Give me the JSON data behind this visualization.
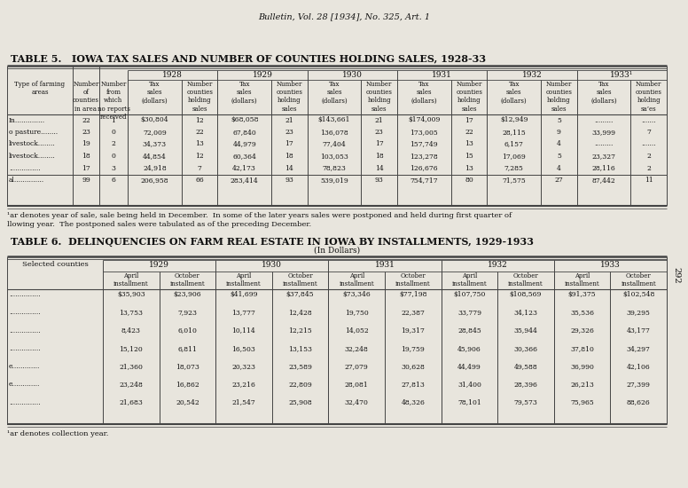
{
  "header_top": "Bulletin, Vol. 28 [1934], No. 325, Art. 1",
  "t5_title": "TABLE 5.   IOWA TAX SALES AND NUMBER OF COUNTIES HOLDING SALES, 1928-33",
  "years": [
    "1928",
    "1929",
    "1930",
    "1931",
    "1932",
    "1933¹"
  ],
  "t5_rows": [
    [
      "In..............",
      "22",
      "1",
      "$30,804",
      "12",
      "$68,058",
      "21",
      "$143,661",
      "21",
      "$174,009",
      "17",
      "$12,949",
      "5",
      ".........",
      "......."
    ],
    [
      "o pasture........",
      "23",
      "0",
      "72,009",
      "22",
      "67,840",
      "23",
      "136,078",
      "23",
      "173,005",
      "22",
      "28,115",
      "9",
      "33,999",
      "7"
    ],
    [
      "livestock........",
      "19",
      "2",
      "34,373",
      "13",
      "44,979",
      "17",
      "77,404",
      "17",
      "157,749",
      "13",
      "6,157",
      "4",
      ".........",
      "......."
    ],
    [
      "livestock........",
      "18",
      "0",
      "44,854",
      "12",
      "60,364",
      "18",
      "103,053",
      "18",
      "123,278",
      "15",
      "17,069",
      "5",
      "23,327",
      "2"
    ],
    [
      "...............",
      "17",
      "3",
      "24,918",
      "7",
      "42,173",
      "14",
      "78,823",
      "14",
      "126,676",
      "13",
      "7,285",
      "4",
      "28,116",
      "2"
    ],
    [
      "al..............",
      "99",
      "6",
      "206,958",
      "66",
      "283,414",
      "93",
      "539,019",
      "93",
      "754,717",
      "80",
      "71,575",
      "27",
      "87,442",
      "11"
    ]
  ],
  "t5_fn1": "¹ar denotes year of sale, sale being held in December.  In some of the later years sales were postponed and held during first quarter of",
  "t5_fn2": "llowing year.  The postponed sales were tabulated as of the preceding December.",
  "t6_title": "TABLE 6.  DELINQUENCIES ON FARM REAL ESTATE IN IOWA BY INSTALLMENTS, 1929-1933",
  "t6_subtitle": "(In Dollars)",
  "t6_years": [
    "1929",
    "1930",
    "1931",
    "1932",
    "1933"
  ],
  "t6_rows": [
    [
      "...............",
      "$35,903",
      "$23,906",
      "$41,699",
      "$37,845",
      "$73,346",
      "$77,198",
      "$107,750",
      "$108,569",
      "$91,375",
      "$102,548"
    ],
    [
      "...............",
      "13,753",
      "7,923",
      "13,777",
      "12,428",
      "19,750",
      "22,387",
      "33,779",
      "34,123",
      "35,536",
      "39,295"
    ],
    [
      "...............",
      "8,423",
      "6,010",
      "10,114",
      "12,215",
      "14,052",
      "19,317",
      "28,845",
      "35,944",
      "29,326",
      "43,177"
    ],
    [
      "...............",
      "15,120",
      "6,811",
      "16,503",
      "13,153",
      "32,248",
      "19,759",
      "45,906",
      "30,366",
      "37,810",
      "34,297"
    ],
    [
      "e.............",
      "21,360",
      "18,073",
      "20,323",
      "23,589",
      "27,079",
      "30,628",
      "44,499",
      "49,588",
      "36,990",
      "42,106"
    ],
    [
      "e.............",
      "23,248",
      "16,862",
      "23,216",
      "22,809",
      "28,081",
      "27,813",
      "31,400",
      "28,396",
      "26,213",
      "27,399"
    ],
    [
      "...............",
      "21,683",
      "20,542",
      "21,547",
      "25,908",
      "32,470",
      "48,326",
      "78,101",
      "79,573",
      "75,965",
      "88,626"
    ]
  ],
  "t6_fn": "¹ar denotes collection year.",
  "page_num": "292",
  "bg_color": "#e8e5dd",
  "text_color": "#111111",
  "line_color": "#444444"
}
